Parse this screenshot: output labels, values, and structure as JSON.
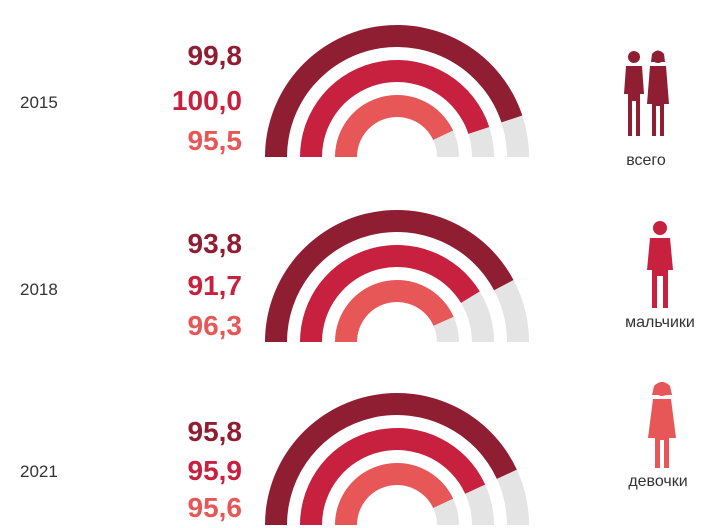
{
  "colors": {
    "total": "#8f1e33",
    "boys": "#c8203f",
    "girls": "#e85757",
    "track": "#e4e4e4",
    "text": "#333333"
  },
  "legend": [
    {
      "label": "всего",
      "icon": "boy-and-girl-icon",
      "color": "#8f1e33"
    },
    {
      "label": "мальчики",
      "icon": "boy-icon",
      "color": "#c8203f"
    },
    {
      "label": "девочки",
      "icon": "girl-icon",
      "color": "#e85757"
    }
  ],
  "chart_data": {
    "type": "radial-bar",
    "max": 100,
    "series_keys": [
      "total",
      "boys",
      "girls"
    ],
    "rows": [
      {
        "year": "2015",
        "values": [
          99.8,
          100.0,
          95.5
        ],
        "labels": [
          "99,8",
          "100,0",
          "95,5"
        ]
      },
      {
        "year": "2018",
        "values": [
          93.8,
          91.7,
          96.3
        ],
        "labels": [
          "93,8",
          "91,7",
          "96,3"
        ]
      },
      {
        "year": "2021",
        "values": [
          95.8,
          95.9,
          95.6
        ],
        "labels": [
          "95,8",
          "95,9",
          "95,6"
        ]
      }
    ]
  }
}
